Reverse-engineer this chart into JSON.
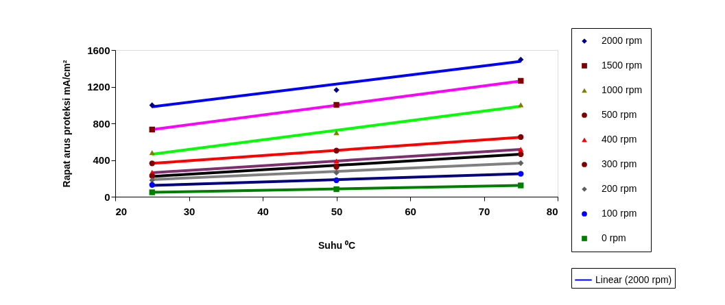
{
  "chart_data": {
    "type": "scatter",
    "xlabel": "Suhu ⁰C",
    "ylabel": "Rapat arus proteksi     mA/cm²",
    "xlim": [
      20,
      80
    ],
    "xticks": [
      20,
      30,
      40,
      50,
      60,
      70,
      80
    ],
    "ylim": [
      0,
      1600
    ],
    "yticks": [
      0,
      400,
      800,
      1200,
      1600
    ],
    "grid": false,
    "legend": "right",
    "series": [
      {
        "name": "2000 rpm",
        "color": "#000080",
        "marker": "diamond",
        "x": [
          25,
          50,
          75
        ],
        "values": [
          998,
          1164,
          1496
        ]
      },
      {
        "name": "1500 rpm",
        "color": "#800000",
        "marker": "square",
        "x": [
          25,
          50,
          75
        ],
        "values": [
          733,
          1002,
          1264
        ]
      },
      {
        "name": "1000 rpm",
        "color": "#808000",
        "marker": "triangle",
        "x": [
          25,
          50,
          75
        ],
        "values": [
          481,
          699,
          1002
        ]
      },
      {
        "name": "500 rpm",
        "color": "#800000",
        "marker": "circle",
        "x": [
          25,
          50,
          75
        ],
        "values": [
          364,
          503,
          651
        ]
      },
      {
        "name": "400 rpm",
        "color": "#ff0000",
        "marker": "triangle",
        "x": [
          25,
          50,
          75
        ],
        "values": [
          266,
          389,
          516
        ]
      },
      {
        "name": "300 rpm",
        "color": "#800000",
        "marker": "circle",
        "x": [
          25,
          50,
          75
        ],
        "values": [
          227,
          325,
          464
        ]
      },
      {
        "name": "200 rpm",
        "color": "#606060",
        "marker": "diamond",
        "x": [
          25,
          50,
          75
        ],
        "values": [
          180,
          262,
          366
        ]
      },
      {
        "name": "100 rpm",
        "color": "#0000ff",
        "marker": "circle",
        "x": [
          25,
          50,
          75
        ],
        "values": [
          129,
          180,
          250
        ]
      },
      {
        "name": "0 rpm",
        "color": "#008000",
        "marker": "square",
        "x": [
          25,
          50,
          75
        ],
        "values": [
          48,
          82,
          123
        ]
      },
      {
        "type": "line",
        "name": "Linear (2000 rpm)",
        "color": "#0000ff",
        "x": [
          25,
          75
        ],
        "values": [
          981,
          1476
        ]
      },
      {
        "type": "line",
        "color": "#ff00ff",
        "x": [
          25,
          75
        ],
        "values": [
          733,
          1262
        ]
      },
      {
        "type": "line",
        "color": "#00ff00",
        "x": [
          25,
          75
        ],
        "values": [
          464,
          987
        ]
      },
      {
        "type": "line",
        "color": "#ff0000",
        "x": [
          25,
          75
        ],
        "values": [
          364,
          648
        ]
      },
      {
        "type": "line",
        "color": "#7f2f6f",
        "x": [
          25,
          75
        ],
        "values": [
          262,
          516
        ]
      },
      {
        "type": "line",
        "color": "#000000",
        "x": [
          25,
          75
        ],
        "values": [
          221,
          464
        ]
      },
      {
        "type": "line",
        "color": "#808080",
        "x": [
          25,
          75
        ],
        "values": [
          187,
          366
        ]
      },
      {
        "type": "line",
        "color": "#000080",
        "x": [
          25,
          75
        ],
        "values": [
          123,
          250
        ]
      },
      {
        "type": "line",
        "color": "#008000",
        "x": [
          25,
          75
        ],
        "values": [
          48,
          123
        ]
      }
    ]
  }
}
